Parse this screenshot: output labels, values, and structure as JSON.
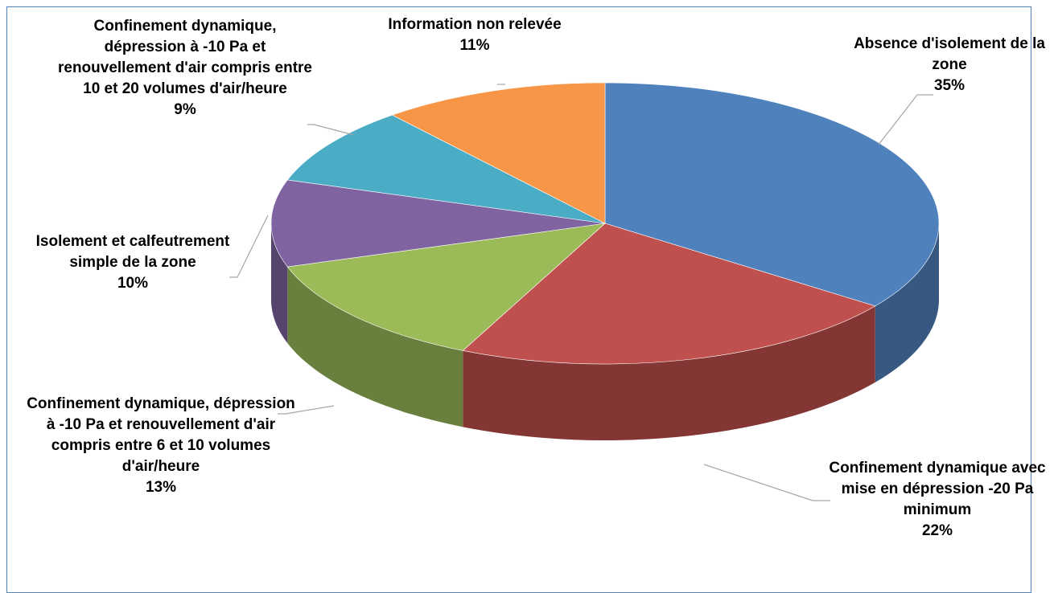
{
  "chart_data": {
    "type": "pie",
    "categories": [
      "Absence d'isolement de la zone",
      "Confinement dynamique avec mise en dépression -20 Pa minimum",
      "Confinement dynamique, dépression à -10 Pa et renouvellement d'air compris entre 6 et 10 volumes d'air/heure",
      "Isolement et calfeutrement simple de la zone",
      "Confinement dynamique, dépression à -10 Pa et renouvellement d'air compris entre 10 et 20 volumes d'air/heure",
      "Information non relevée"
    ],
    "values": [
      35,
      22,
      13,
      10,
      9,
      11
    ],
    "value_labels": [
      "35%",
      "22%",
      "13%",
      "10%",
      "9%",
      "11%"
    ],
    "colors": [
      "#4f81bd",
      "#c0504d",
      "#9bbb59",
      "#8064a2",
      "#4bacc6",
      "#f79646"
    ]
  }
}
